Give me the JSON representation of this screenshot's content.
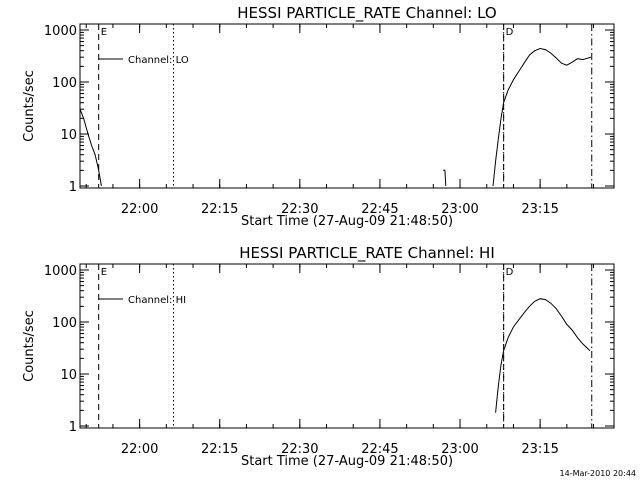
{
  "chart_data": [
    {
      "type": "line",
      "title": "HESSI PARTICLE_RATE Channel: LO",
      "xlabel": "Start Time (27-Aug-09 21:48:50)",
      "ylabel": "Counts/sec",
      "yscale": "log",
      "ylim": [
        1,
        1000
      ],
      "xlim": [
        "21:48:50",
        "23:28:50"
      ],
      "xticks": [
        "22:00",
        "22:15",
        "22:30",
        "22:45",
        "23:00",
        "23:15"
      ],
      "yticks": [
        "1",
        "10",
        "100",
        "1000"
      ],
      "legend": {
        "label": "Channel: LO",
        "placement": "top-left"
      },
      "markers": [
        {
          "time": "21:52:20",
          "style": "dashed",
          "label": "E"
        },
        {
          "time": "22:06:20",
          "style": "dotted"
        },
        {
          "time": "23:08:10",
          "style": "dotted",
          "label": "D"
        },
        {
          "time": "23:08:10",
          "style": "dashed"
        },
        {
          "time": "23:24:40",
          "style": "dash-dot"
        }
      ],
      "series": [
        {
          "segments": [
            {
              "x": [
                "21:48:50",
                "21:49:30",
                "21:50:20",
                "21:51:00",
                "21:51:40",
                "21:52:20",
                "21:52:50"
              ],
              "y": [
                30,
                20,
                10,
                6,
                4,
                2,
                1
              ]
            },
            {
              "x": [
                "22:56:50",
                "22:57:10",
                "22:57:20"
              ],
              "y": [
                2,
                2,
                1
              ]
            },
            {
              "x": [
                "23:06:10",
                "23:06:40",
                "23:07:10",
                "23:07:40",
                "23:08:10",
                "23:09:00",
                "23:10:00",
                "23:11:00",
                "23:12:00",
                "23:13:00",
                "23:14:00",
                "23:15:00",
                "23:16:00",
                "23:17:00",
                "23:18:00",
                "23:19:00",
                "23:20:00",
                "23:21:00",
                "23:22:00",
                "23:23:00",
                "23:24:30"
              ],
              "y": [
                1,
                3,
                8,
                20,
                40,
                70,
                110,
                160,
                230,
                330,
                400,
                440,
                420,
                360,
                290,
                230,
                210,
                240,
                280,
                270,
                300
              ]
            }
          ]
        }
      ]
    },
    {
      "type": "line",
      "title": "HESSI PARTICLE_RATE Channel: HI",
      "xlabel": "Start Time (27-Aug-09 21:48:50)",
      "ylabel": "Counts/sec",
      "yscale": "log",
      "ylim": [
        1,
        1000
      ],
      "xlim": [
        "21:48:50",
        "23:28:50"
      ],
      "xticks": [
        "22:00",
        "22:15",
        "22:30",
        "22:45",
        "23:00",
        "23:15"
      ],
      "yticks": [
        "1",
        "10",
        "100",
        "1000"
      ],
      "legend": {
        "label": "Channel: HI",
        "placement": "top-left"
      },
      "markers": [
        {
          "time": "21:52:20",
          "style": "dashed",
          "label": "E"
        },
        {
          "time": "22:06:20",
          "style": "dotted"
        },
        {
          "time": "23:08:10",
          "style": "dotted",
          "label": "D"
        },
        {
          "time": "23:08:10",
          "style": "dashed"
        },
        {
          "time": "23:24:40",
          "style": "dash-dot"
        }
      ],
      "series": [
        {
          "segments": [
            {
              "x": [
                "23:06:40",
                "23:07:00",
                "23:07:20",
                "23:07:40",
                "23:08:10",
                "23:09:00",
                "23:10:00",
                "23:11:00",
                "23:12:00",
                "23:13:00",
                "23:14:00",
                "23:15:00",
                "23:16:00",
                "23:17:00",
                "23:18:00",
                "23:19:00",
                "23:20:00",
                "23:21:00",
                "23:22:00",
                "23:23:00",
                "23:24:20"
              ],
              "y": [
                1.8,
                4,
                8,
                15,
                28,
                50,
                80,
                110,
                150,
                200,
                250,
                280,
                270,
                230,
                180,
                130,
                90,
                70,
                50,
                38,
                28
              ]
            }
          ]
        }
      ]
    }
  ],
  "footer": {
    "timestamp": "14-Mar-2010 20:44"
  }
}
